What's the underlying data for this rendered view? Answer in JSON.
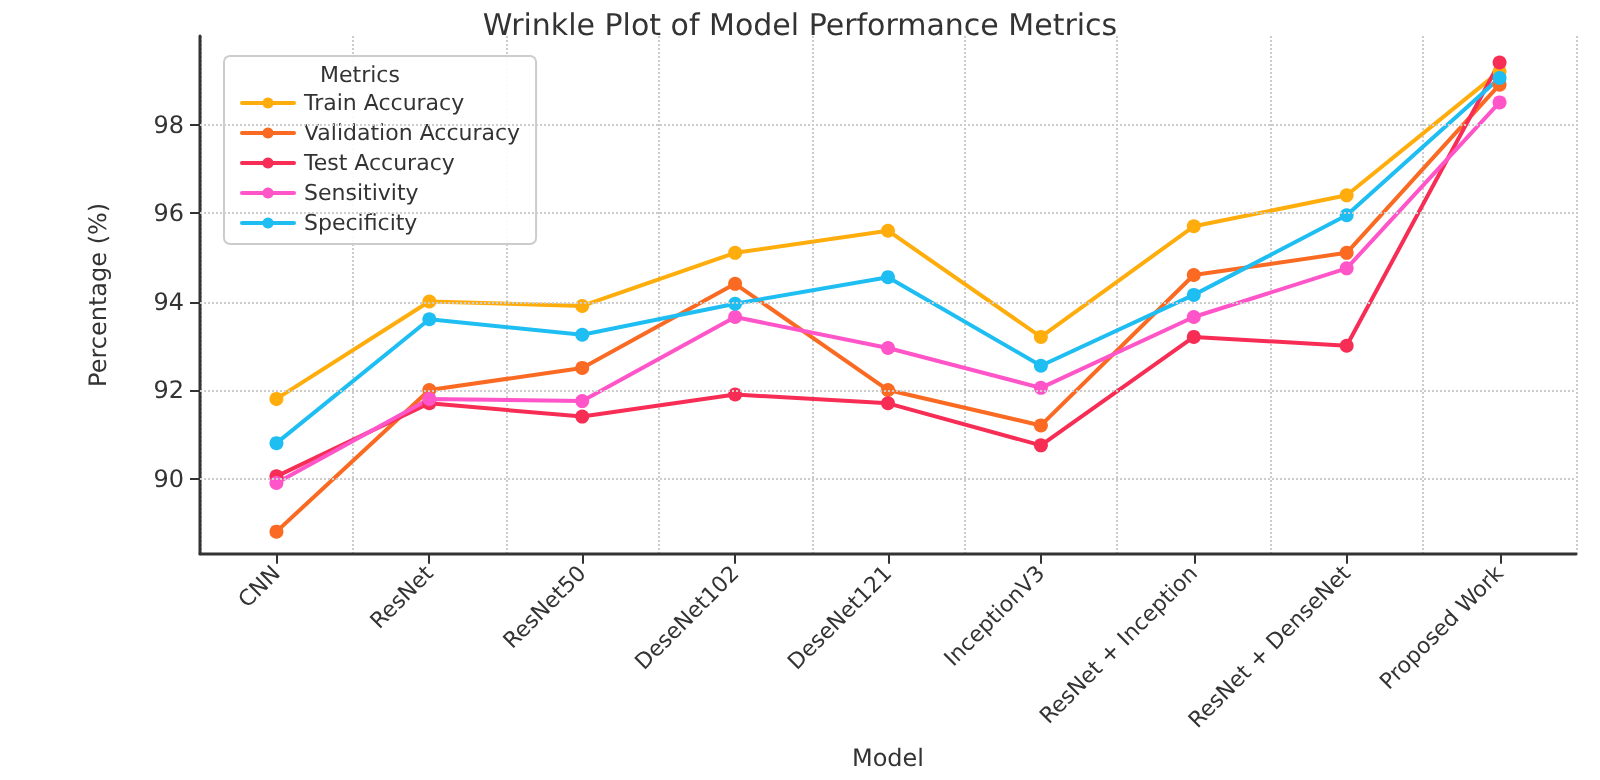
{
  "chart_data": {
    "type": "line",
    "title": "Wrinkle Plot of Model Performance Metrics",
    "xlabel": "Model",
    "ylabel": "Percentage (%)",
    "legend_title": "Metrics",
    "categories": [
      "CNN",
      "ResNet",
      "ResNet50",
      "DeseNet102",
      "DeseNet121",
      "InceptionV3",
      "ResNet + Inception",
      "ResNet + DenseNet",
      "Proposed Work"
    ],
    "series": [
      {
        "name": "Train Accuracy",
        "color": "#ffad0d",
        "values": [
          91.8,
          94.0,
          93.9,
          95.1,
          95.6,
          93.2,
          95.7,
          96.4,
          99.2
        ]
      },
      {
        "name": "Validation Accuracy",
        "color": "#fa6a22",
        "values": [
          88.8,
          92.0,
          92.5,
          94.4,
          92.0,
          91.2,
          94.6,
          95.1,
          98.9
        ]
      },
      {
        "name": "Test Accuracy",
        "color": "#f72d55",
        "values": [
          90.05,
          91.7,
          91.4,
          91.9,
          91.7,
          90.75,
          93.2,
          93.0,
          99.4
        ]
      },
      {
        "name": "Sensitivity",
        "color": "#ff55c8",
        "values": [
          89.9,
          91.8,
          91.75,
          93.65,
          92.95,
          92.05,
          93.65,
          94.75,
          98.5
        ]
      },
      {
        "name": "Specificity",
        "color": "#1fbef2",
        "values": [
          90.8,
          93.6,
          93.25,
          93.95,
          94.55,
          92.55,
          94.15,
          95.95,
          99.05
        ]
      }
    ],
    "ylim": [
      88.3,
      100
    ],
    "yticks": [
      90,
      92,
      94,
      96,
      98
    ],
    "grid": true,
    "legend": "top left",
    "marker": "circle",
    "line_style": "solid"
  }
}
